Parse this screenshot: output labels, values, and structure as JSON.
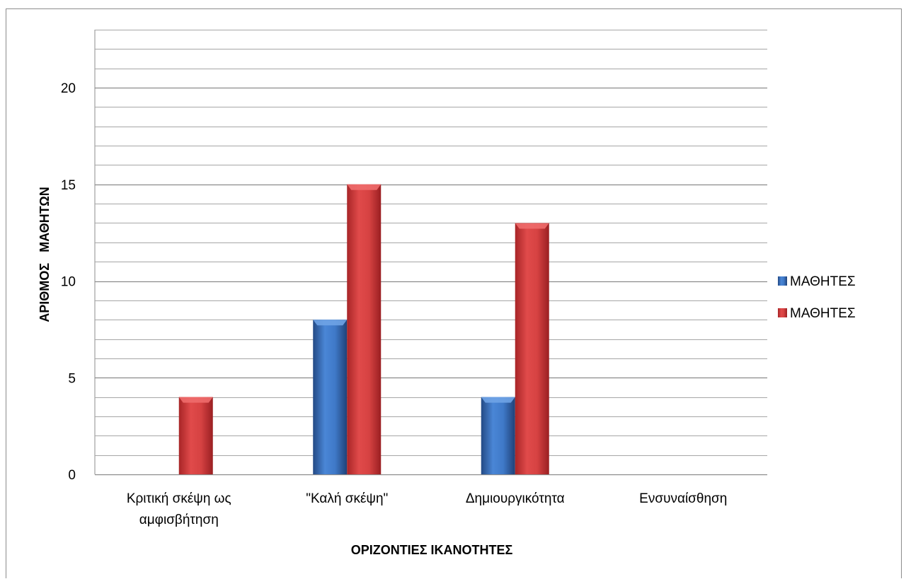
{
  "chart_data": {
    "type": "bar",
    "categories": [
      [
        "Κριτική σκέψη ως",
        "αμφισβήτηση"
      ],
      [
        "\"Καλή σκέψη\""
      ],
      [
        "Δημιουργικότητα"
      ],
      [
        "Ενσυναίσθηση"
      ]
    ],
    "series": [
      {
        "name": "ΜΑΘΗΤΕΣ",
        "values": [
          0,
          8,
          4,
          0
        ],
        "color": "#3a6fba"
      },
      {
        "name": "ΜΑΘΗΤΕΣ",
        "values": [
          4,
          15,
          13,
          0
        ],
        "color": "#c8393a"
      }
    ],
    "xlabel": "ΟΡΙΖΟΝΤΙΕΣ ΙΚΑΝΟΤΗΤΕΣ",
    "ylabel": "ΑΡΙΘΜΟΣ   ΜΑΘΗΤΩΝ",
    "ylim": [
      0,
      23
    ],
    "yticks": [
      0,
      5,
      10,
      15,
      20
    ],
    "minor_grid_step": 1,
    "legend_position": "right",
    "grid": true
  }
}
